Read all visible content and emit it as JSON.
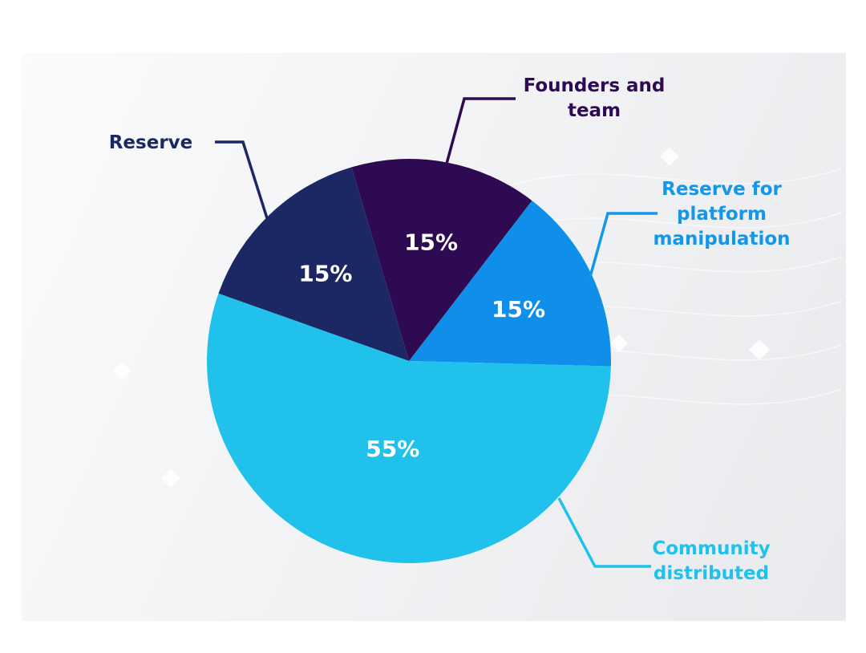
{
  "chart_data": {
    "type": "pie",
    "categories": [
      "Reserve for platform manipulation",
      "Founders and team",
      "Reserve",
      "Community distributed"
    ],
    "values": [
      15,
      15,
      15,
      55
    ],
    "value_labels": [
      "15%",
      "15%",
      "15%",
      "55%"
    ],
    "label_lines": [
      [
        "Reserve for",
        "platform",
        "manipulation"
      ],
      [
        "Founders and",
        "team"
      ],
      [
        "Reserve"
      ],
      [
        "Community",
        "distributed"
      ]
    ],
    "colors": [
      "#0f8fea",
      "#2e0a52",
      "#1c2863",
      "#20c1ea"
    ],
    "label_colors": [
      "#1397e6",
      "#2e0a52",
      "#1c2863",
      "#20c1ea"
    ],
    "title": ""
  }
}
